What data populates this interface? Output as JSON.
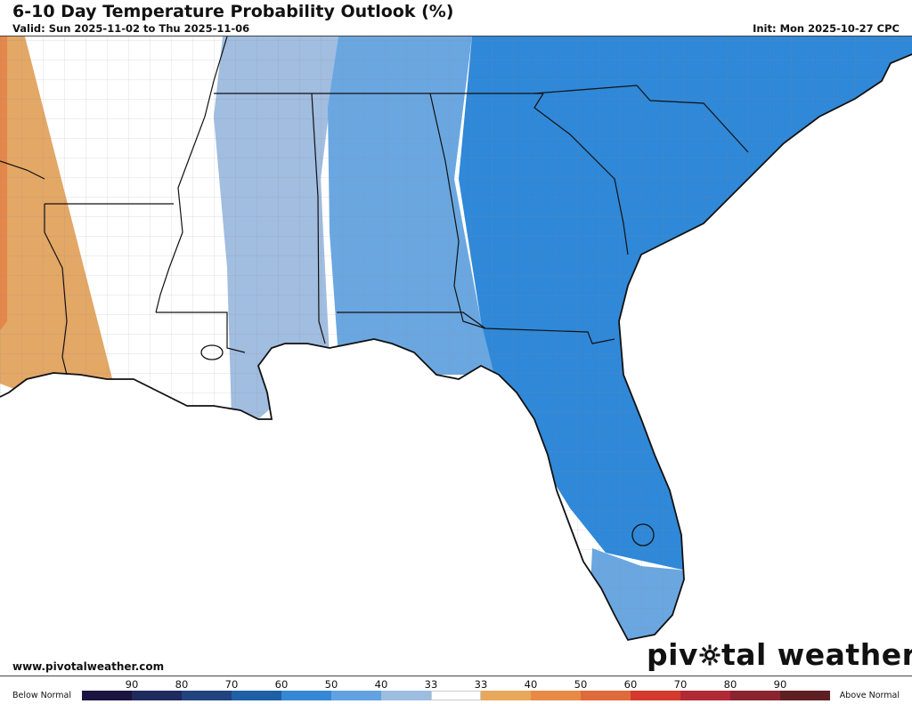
{
  "header": {
    "title": "6-10 Day Temperature Probability Outlook (%)",
    "valid": "Valid: Sun 2025-11-02 to Thu 2025-11-06",
    "init": "Init: Mon 2025-10-27 CPC"
  },
  "footer": {
    "website": "www.pivotalweather.com",
    "logo_left": "piv",
    "logo_right": "tal weather"
  },
  "legend": {
    "below_label": "Below Normal",
    "above_label": "Above Normal",
    "ticks": [
      "90",
      "80",
      "70",
      "60",
      "50",
      "40",
      "33",
      "33",
      "40",
      "50",
      "60",
      "70",
      "80",
      "90"
    ],
    "colors": [
      "#1c1440",
      "#1f2a5e",
      "#22437f",
      "#1f5fa6",
      "#3688d4",
      "#62a2e0",
      "#9dbde0",
      "#ffffff",
      "#e8a85c",
      "#e88a45",
      "#df6a3a",
      "#d43a2d",
      "#b02a35",
      "#8a2530",
      "#5e1f22"
    ]
  },
  "map": {
    "shading": {
      "below_50": "#2f88d8",
      "below_40": "#6aa7e1",
      "below_33": "#a1bde0",
      "above_40": "#e3a766",
      "above_50": "#e5874a"
    }
  }
}
